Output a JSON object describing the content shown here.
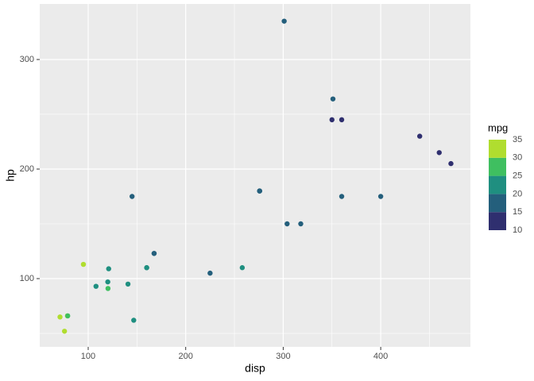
{
  "chart_data": {
    "type": "scatter",
    "x_label": "disp",
    "y_label": "hp",
    "xlim": [
      50.3,
      492
    ],
    "ylim": [
      37.7,
      350.7
    ],
    "xticks": [
      100,
      200,
      300,
      400
    ],
    "yticks": [
      100,
      200,
      300
    ],
    "x_minor_breaks": [
      150,
      250,
      350,
      450
    ],
    "y_minor_breaks": [
      50,
      150,
      250
    ],
    "grid": true,
    "x": [
      160,
      160,
      108,
      258,
      360,
      225,
      360,
      146.7,
      140.8,
      167.6,
      167.6,
      275.8,
      275.8,
      275.8,
      472,
      460,
      440,
      78.7,
      75.7,
      71.1,
      120.1,
      318,
      304,
      350,
      400,
      79,
      120.3,
      95.1,
      351,
      145,
      301,
      121
    ],
    "y": [
      110,
      110,
      93,
      110,
      175,
      105,
      245,
      62,
      95,
      123,
      123,
      180,
      180,
      180,
      205,
      215,
      230,
      66,
      52,
      65,
      97,
      150,
      150,
      245,
      175,
      66,
      91,
      113,
      264,
      175,
      335,
      109
    ],
    "color_values": [
      21,
      21,
      22.8,
      21.4,
      18.7,
      18.1,
      14.3,
      24.4,
      22.8,
      19.2,
      17.8,
      16.4,
      17.3,
      15.2,
      10.4,
      10.4,
      14.7,
      32.4,
      30.4,
      33.9,
      21.5,
      15.5,
      15.2,
      13.3,
      19.2,
      27.3,
      26,
      30.4,
      15.8,
      19.7,
      15,
      21.4
    ],
    "legend": {
      "title": "mpg",
      "position": "right",
      "breaks": [
        10,
        15,
        20,
        25,
        30,
        35
      ],
      "colors": [
        "#2f2f6f",
        "#245f7c",
        "#1f8f80",
        "#3fbf60",
        "#b0dd2f"
      ]
    }
  }
}
